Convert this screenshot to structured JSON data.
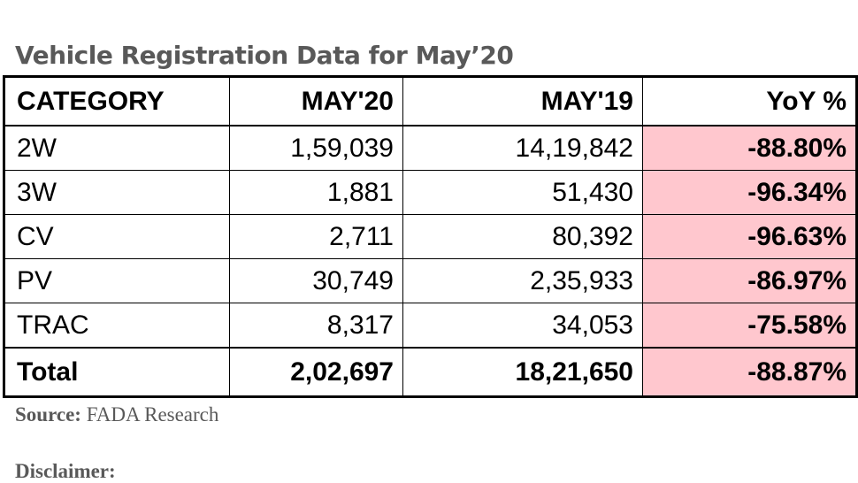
{
  "title": "Vehicle Registration Data for May’20",
  "table": {
    "headers": [
      "CATEGORY",
      "MAY'20",
      "MAY'19",
      "YoY %"
    ],
    "rows": [
      [
        "2W",
        "1,59,039",
        "14,19,842",
        "-88.80%"
      ],
      [
        "3W",
        "1,881",
        "51,430",
        "-96.34%"
      ],
      [
        "CV",
        "2,711",
        "80,392",
        "-96.63%"
      ],
      [
        "PV",
        "30,749",
        "2,35,933",
        "-86.97%"
      ],
      [
        "TRAC",
        "8,317",
        "34,053",
        "-75.58%"
      ]
    ],
    "total": [
      "Total",
      "2,02,697",
      "18,21,650",
      "-88.87%"
    ]
  },
  "source": {
    "label": "Source:",
    "value": "FADA Research"
  },
  "disclaimer": "Disclaimer:",
  "colors": {
    "title": "#595959",
    "negative_fill": "#ffc7ce",
    "negative_text": "#c00000"
  }
}
